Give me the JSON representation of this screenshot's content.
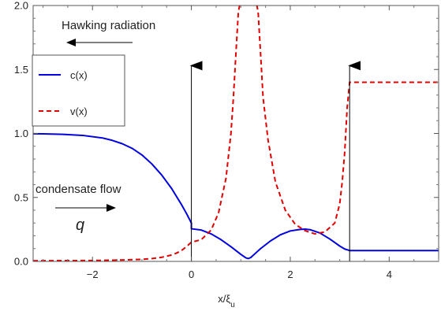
{
  "chart_data": {
    "type": "line",
    "xlabel": "x/ξ",
    "xlabel_subscript": "u",
    "xlim": [
      -3.2,
      5.0
    ],
    "ylim": [
      0.0,
      2.0
    ],
    "x_ticks": [
      -2,
      0,
      2,
      4
    ],
    "x_tick_labels": [
      "−2",
      "0",
      "2",
      "4"
    ],
    "y_ticks": [
      0.0,
      0.5,
      1.0,
      1.5,
      2.0
    ],
    "y_tick_labels": [
      "0.0",
      "0.5",
      "1.0",
      "1.5",
      "2.0"
    ],
    "grid": false,
    "legend_position": "top-left",
    "series": [
      {
        "name": "c(x)",
        "color": "#0000e0",
        "style": "solid",
        "x": [
          -3.2,
          -3.0,
          -2.6,
          -2.2,
          -1.8,
          -1.6,
          -1.4,
          -1.2,
          -1.0,
          -0.8,
          -0.6,
          -0.4,
          -0.2,
          -0.1,
          0.0,
          0.0,
          0.2,
          0.4,
          0.6,
          0.8,
          0.9,
          1.0,
          1.1,
          1.15,
          1.2,
          1.3,
          1.4,
          1.6,
          1.8,
          2.0,
          2.2,
          2.3,
          2.4,
          2.6,
          2.8,
          3.0,
          3.1,
          3.2,
          3.2,
          5.0
        ],
        "values": [
          0.998,
          0.997,
          0.993,
          0.985,
          0.965,
          0.946,
          0.92,
          0.884,
          0.832,
          0.762,
          0.675,
          0.57,
          0.444,
          0.375,
          0.3,
          0.255,
          0.245,
          0.215,
          0.17,
          0.115,
          0.085,
          0.055,
          0.028,
          0.022,
          0.03,
          0.065,
          0.1,
          0.16,
          0.208,
          0.238,
          0.25,
          0.252,
          0.248,
          0.222,
          0.175,
          0.12,
          0.097,
          0.085,
          0.085,
          0.085
        ]
      },
      {
        "name": "v(x)",
        "color": "#e00000",
        "style": "dashed",
        "x": [
          -3.2,
          -2.0,
          -1.5,
          -1.0,
          -0.8,
          -0.6,
          -0.4,
          -0.3,
          -0.2,
          -0.1,
          0.0,
          0.0,
          0.2,
          0.4,
          0.55,
          0.7,
          0.8,
          0.85,
          0.9,
          0.95,
          1.0,
          1.3,
          1.35,
          1.4,
          1.45,
          1.55,
          1.7,
          1.9,
          2.1,
          2.3,
          2.5,
          2.7,
          2.9,
          3.0,
          3.05,
          3.1,
          3.15,
          3.2,
          3.2,
          5.0
        ],
        "values": [
          0.005,
          0.007,
          0.01,
          0.016,
          0.022,
          0.032,
          0.05,
          0.065,
          0.085,
          0.115,
          0.15,
          0.15,
          0.17,
          0.245,
          0.38,
          0.65,
          1.0,
          1.28,
          1.62,
          1.95,
          2.05,
          2.05,
          1.95,
          1.62,
          1.28,
          0.95,
          0.62,
          0.4,
          0.29,
          0.24,
          0.215,
          0.23,
          0.3,
          0.45,
          0.62,
          0.85,
          1.2,
          1.4,
          1.4,
          1.4
        ]
      }
    ],
    "annotations": {
      "hawking_label": "Hawking radiation",
      "flow_label": "condensate flow",
      "q_label": "q"
    }
  }
}
